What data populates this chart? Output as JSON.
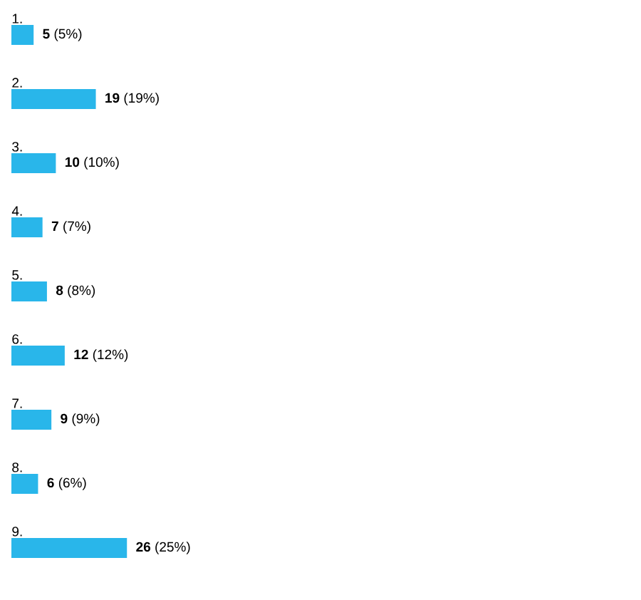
{
  "chart_data": {
    "type": "bar",
    "orientation": "horizontal",
    "categories": [
      "1.",
      "2.",
      "3.",
      "4.",
      "5.",
      "6.",
      "7.",
      "8.",
      "9."
    ],
    "values": [
      5,
      19,
      10,
      7,
      8,
      12,
      9,
      6,
      26
    ],
    "value_labels": [
      "**5** (5%)",
      "**19** (19%)",
      "**10** (10%)",
      "**7** (7%)",
      "**8** (8%)",
      "**12** (12%)",
      "**9** (9%)",
      "**6** (6%)",
      "**26** (25%)"
    ],
    "color": "#29b6ea"
  }
}
